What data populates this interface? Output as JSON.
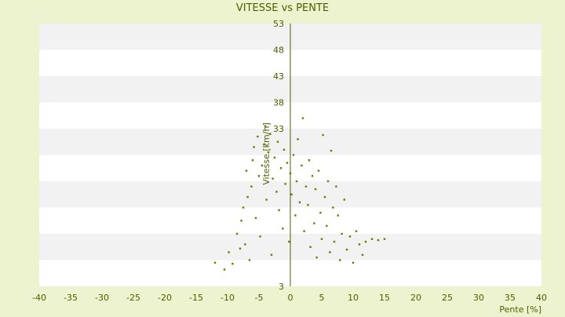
{
  "chart_data": {
    "type": "scatter",
    "title": "VITESSE vs PENTE",
    "xlabel": "Pente [%]",
    "ylabel": "Vitesse [km/h]",
    "xlim": [
      -40,
      40
    ],
    "ylim": [
      3,
      53
    ],
    "x_ticks": [
      -40,
      -35,
      -30,
      -25,
      -20,
      -15,
      -10,
      -5,
      0,
      5,
      10,
      15,
      20,
      25,
      30,
      35,
      40
    ],
    "y_ticks": [
      3,
      8,
      13,
      18,
      23,
      28,
      33,
      38,
      43,
      48,
      53
    ],
    "y_tick_labels_shown": [
      3,
      33,
      38,
      43,
      48,
      53
    ],
    "grid": "alternating horizontal bands",
    "legend": "none",
    "colors": {
      "background": "#eef3cf",
      "plot_band_light": "#ffffff",
      "plot_band_dark": "#f2f2f2",
      "marker": "#6b7a00",
      "axis": "#4f5d00",
      "text": "#4f5d00"
    },
    "points": [
      [
        -12.0,
        7.5
      ],
      [
        -10.5,
        6.2
      ],
      [
        -9.8,
        9.5
      ],
      [
        -9.2,
        7.3
      ],
      [
        -8.5,
        13.0
      ],
      [
        -8.0,
        10.2
      ],
      [
        -7.8,
        15.5
      ],
      [
        -7.5,
        18.0
      ],
      [
        -7.2,
        11.0
      ],
      [
        -7.0,
        25.0
      ],
      [
        -6.8,
        20.0
      ],
      [
        -6.5,
        8.0
      ],
      [
        -6.2,
        22.0
      ],
      [
        -6.0,
        27.0
      ],
      [
        -5.8,
        29.5
      ],
      [
        -5.5,
        16.0
      ],
      [
        -5.2,
        31.5
      ],
      [
        -5.0,
        24.0
      ],
      [
        -4.8,
        12.5
      ],
      [
        -4.5,
        26.0
      ],
      [
        -4.2,
        30.0
      ],
      [
        -4.0,
        33.5
      ],
      [
        -3.8,
        19.5
      ],
      [
        -3.5,
        28.5
      ],
      [
        -3.2,
        32.0
      ],
      [
        -3.0,
        9.0
      ],
      [
        -2.8,
        23.5
      ],
      [
        -2.5,
        27.5
      ],
      [
        -2.2,
        21.0
      ],
      [
        -2.0,
        30.5
      ],
      [
        -1.8,
        17.5
      ],
      [
        -1.5,
        25.5
      ],
      [
        -1.2,
        14.0
      ],
      [
        -1.0,
        29.0
      ],
      [
        -0.8,
        22.5
      ],
      [
        -0.5,
        26.5
      ],
      [
        -0.2,
        11.5
      ],
      [
        0.0,
        24.5
      ],
      [
        0.2,
        20.5
      ],
      [
        0.5,
        28.0
      ],
      [
        0.8,
        16.5
      ],
      [
        1.0,
        23.0
      ],
      [
        1.2,
        31.0
      ],
      [
        1.5,
        19.0
      ],
      [
        1.8,
        26.0
      ],
      [
        2.0,
        35.0
      ],
      [
        2.2,
        13.5
      ],
      [
        2.5,
        22.0
      ],
      [
        2.8,
        18.5
      ],
      [
        3.0,
        27.0
      ],
      [
        3.2,
        10.5
      ],
      [
        3.5,
        24.0
      ],
      [
        3.8,
        15.0
      ],
      [
        4.0,
        21.5
      ],
      [
        4.2,
        8.5
      ],
      [
        4.5,
        25.0
      ],
      [
        4.8,
        17.0
      ],
      [
        5.0,
        12.0
      ],
      [
        5.2,
        31.8
      ],
      [
        5.5,
        20.0
      ],
      [
        5.8,
        14.5
      ],
      [
        6.0,
        23.0
      ],
      [
        6.3,
        9.5
      ],
      [
        6.5,
        28.8
      ],
      [
        6.8,
        18.0
      ],
      [
        7.0,
        11.5
      ],
      [
        7.3,
        22.0
      ],
      [
        7.6,
        16.5
      ],
      [
        7.9,
        8.0
      ],
      [
        8.2,
        13.0
      ],
      [
        8.6,
        19.5
      ],
      [
        9.0,
        10.0
      ],
      [
        9.5,
        12.5
      ],
      [
        10.0,
        7.5
      ],
      [
        10.5,
        13.5
      ],
      [
        11.0,
        11.0
      ],
      [
        11.5,
        9.0
      ],
      [
        12.0,
        11.5
      ],
      [
        13.0,
        12.0
      ],
      [
        14.0,
        11.8
      ],
      [
        15.0,
        12.0
      ]
    ]
  }
}
